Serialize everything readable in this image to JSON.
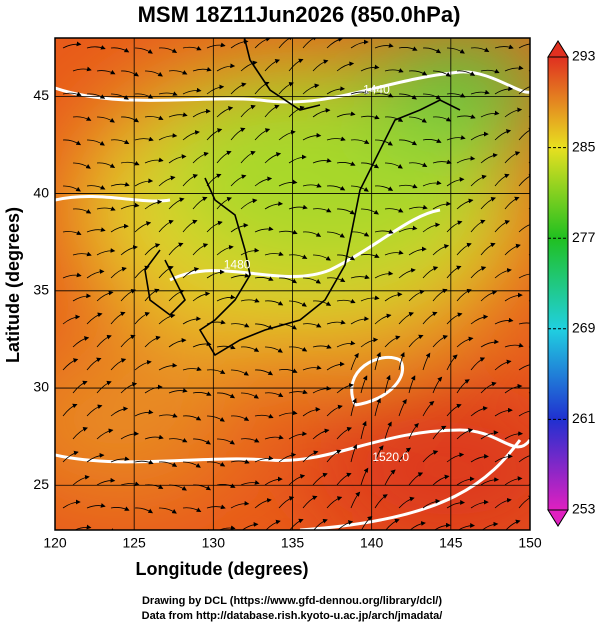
{
  "chart_data": {
    "type": "map",
    "title": "MSM 18Z11Jun2026 (850.0hPa)",
    "x_label": "Longitude (degrees)",
    "y_label": "Latitude  (degrees)",
    "xlim": [
      120,
      150
    ],
    "ylim": [
      22.7,
      48
    ],
    "xticks": [
      120,
      125,
      130,
      135,
      140,
      145,
      150
    ],
    "yticks": [
      25,
      30,
      35,
      40,
      45
    ],
    "grid": true,
    "colorbar": {
      "lim": [
        253,
        293
      ],
      "ticks": [
        253,
        261,
        269,
        277,
        285,
        293
      ],
      "colors": [
        "#e020c0",
        "#2030d0",
        "#20d0e0",
        "#20c020",
        "#e8e020",
        "#e03020"
      ]
    },
    "contour_labels": [
      {
        "label": "1440",
        "lon": 140.3,
        "lat": 45.3
      },
      {
        "label": "1480",
        "lon": 131.5,
        "lat": 36.3
      },
      {
        "label": "1520.0",
        "lon": 141.2,
        "lat": 26.4
      }
    ],
    "credits": [
      "Drawing by DCL (https://www.gfd-dennou.org/library/dcl/)",
      "Data from http://database.rish.kyoto-u.ac.jp/arch/jmadata/"
    ]
  }
}
